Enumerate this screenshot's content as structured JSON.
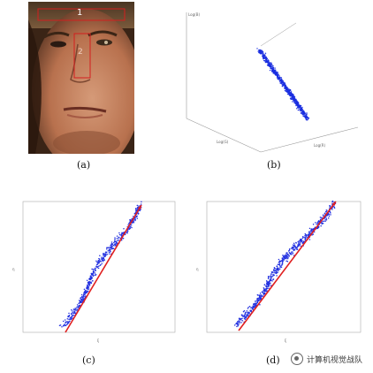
{
  "panels": {
    "a": {
      "caption": "(a)",
      "regions": [
        {
          "label": "1"
        },
        {
          "label": "2"
        }
      ],
      "colors": {
        "box": "#d41e1e",
        "skin": "#b07050",
        "shadow": "#2e1a10"
      }
    },
    "b": {
      "caption": "(b)",
      "axis_labels": {
        "z": "Log(B)",
        "x": "Log(G)",
        "y": "Log(R)"
      },
      "point_color": "#1a2ee0"
    },
    "c": {
      "caption": "(c)",
      "point_color": "#2230e0",
      "line_color": "#e02020",
      "xlabel": "ξ",
      "ylabel": "η"
    },
    "d": {
      "caption": "(d)",
      "point_color": "#2230e0",
      "line_color": "#e02020",
      "xlabel": "ξ",
      "ylabel": "η"
    }
  },
  "watermark": {
    "text": "计算机视觉战队",
    "icon": "wechat-icon"
  }
}
